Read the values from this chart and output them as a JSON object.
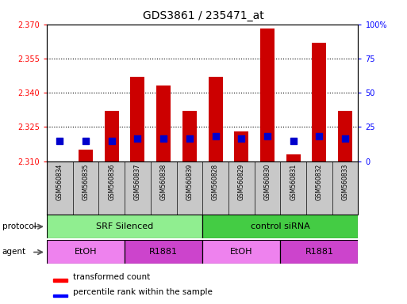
{
  "title": "GDS3861 / 235471_at",
  "samples": [
    "GSM560834",
    "GSM560835",
    "GSM560836",
    "GSM560837",
    "GSM560838",
    "GSM560839",
    "GSM560828",
    "GSM560829",
    "GSM560830",
    "GSM560831",
    "GSM560832",
    "GSM560833"
  ],
  "red_values": [
    2.31,
    2.315,
    2.332,
    2.347,
    2.343,
    2.332,
    2.347,
    2.323,
    2.368,
    2.313,
    2.362,
    2.332
  ],
  "blue_values": [
    2.319,
    2.319,
    2.319,
    2.32,
    2.32,
    2.32,
    2.321,
    2.32,
    2.321,
    2.319,
    2.321,
    2.32
  ],
  "ylim": [
    2.31,
    2.37
  ],
  "yticks_left": [
    2.31,
    2.325,
    2.34,
    2.355,
    2.37
  ],
  "yticks_right_vals": [
    0,
    25,
    50,
    75,
    100
  ],
  "yticks_right_labels": [
    "0",
    "25",
    "50",
    "75",
    "100%"
  ],
  "bar_color": "#cc0000",
  "dot_color": "#0000cc",
  "protocol_color_left": "#90ee90",
  "protocol_color_right": "#44cc44",
  "agent_colors": [
    "#ee82ee",
    "#cc44cc",
    "#ee82ee",
    "#cc44cc"
  ],
  "bar_bottom": 2.31,
  "bar_width": 0.55,
  "dot_size": 40,
  "gray_bg": "#c8c8c8",
  "protocol_groups": [
    {
      "label": "SRF Silenced",
      "start": 0,
      "end": 6,
      "color": "#90ee90"
    },
    {
      "label": "control siRNA",
      "start": 6,
      "end": 12,
      "color": "#44cc44"
    }
  ],
  "agent_groups": [
    {
      "label": "EtOH",
      "start": 0,
      "end": 3,
      "color": "#ee82ee"
    },
    {
      "label": "R1881",
      "start": 3,
      "end": 6,
      "color": "#cc44cc"
    },
    {
      "label": "EtOH",
      "start": 6,
      "end": 9,
      "color": "#ee82ee"
    },
    {
      "label": "R1881",
      "start": 9,
      "end": 12,
      "color": "#cc44cc"
    }
  ]
}
